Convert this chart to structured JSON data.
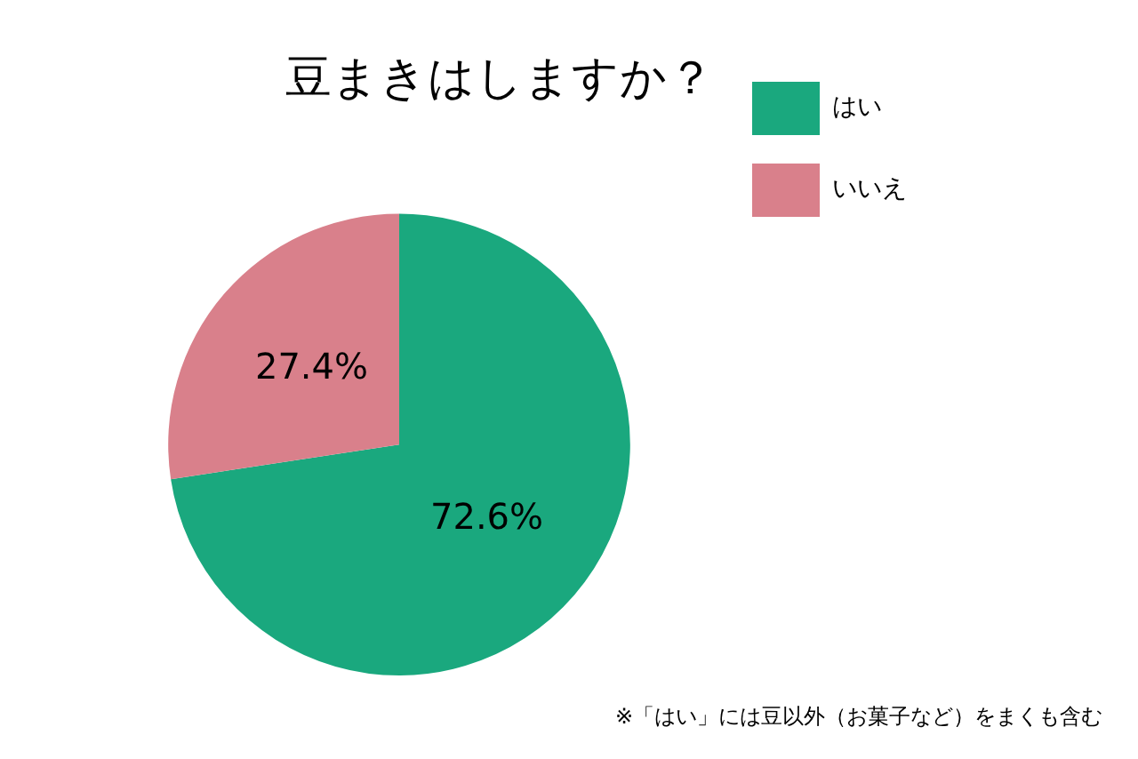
{
  "chart_data": {
    "type": "pie",
    "title": "豆まきはしますか？",
    "categories": [
      "はい",
      "いいえ"
    ],
    "values": [
      72.6,
      27.4
    ],
    "colors": [
      "#1aa87e",
      "#d9808b"
    ],
    "value_labels": [
      "72.6%",
      "27.4%"
    ],
    "legend": "right",
    "annotations": [
      "※「はい」には豆以外（お菓子など）をまくも含む"
    ]
  }
}
